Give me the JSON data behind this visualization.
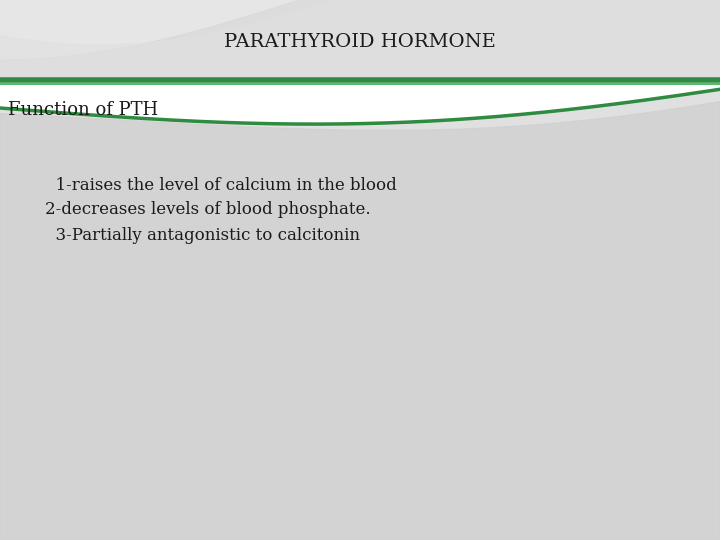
{
  "title": "PARATHYROID HORMONE",
  "subtitle": "Function of PTH",
  "bullet1": "  1-raises the level of calcium in the blood",
  "bullet2": "2-decreases levels of blood phosphate.",
  "bullet3": "  3-Partially antagonistic to calcitonin",
  "bg_color": "#ffffff",
  "header_bg": "#e6e6e6",
  "line_color": "#2e8b40",
  "title_color": "#1a1a1a",
  "text_color": "#1a1a1a",
  "title_fontsize": 14,
  "subtitle_fontsize": 13,
  "bullet_fontsize": 12
}
